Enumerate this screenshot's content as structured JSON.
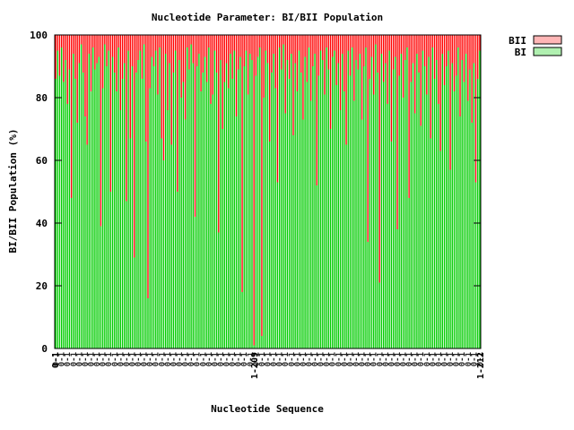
{
  "chart_data": {
    "type": "bar",
    "stacked": true,
    "title": "Nucleotide Parameter: BI/BII Population",
    "xlabel": "Nucleotide Sequence",
    "ylabel": "BI/BII Population (%)",
    "ylim": [
      0,
      100
    ],
    "yticks": [
      "0",
      "20",
      "40",
      "60",
      "80",
      "100"
    ],
    "grid": false,
    "legend_position": "top-right, outside plot",
    "x_axis_labels": {
      "first": "0-1",
      "middle": "1-209",
      "last": "1-212",
      "note": "x tick labels are densely overprinted and only partly legible"
    },
    "series": [
      {
        "name": "BII",
        "color": "#ff0000",
        "legend_swatch_color": "#ffb6b6",
        "values": [
          14,
          5,
          13,
          4,
          15,
          8,
          22,
          11,
          52,
          6,
          14,
          28,
          9,
          3,
          12,
          26,
          35,
          6,
          18,
          4,
          11,
          9,
          7,
          61,
          17,
          3,
          10,
          5,
          50,
          7,
          12,
          18,
          4,
          24,
          14,
          9,
          53,
          5,
          33,
          10,
          71,
          12,
          8,
          5,
          14,
          3,
          34,
          84,
          17,
          7,
          10,
          5,
          19,
          4,
          33,
          40,
          6,
          24,
          9,
          35,
          12,
          5,
          50,
          8,
          20,
          15,
          27,
          4,
          11,
          3,
          9,
          58,
          10,
          6,
          18,
          12,
          7,
          15,
          4,
          22,
          19,
          5,
          12,
          63,
          8,
          30,
          15,
          9,
          17,
          6,
          14,
          5,
          26,
          11,
          7,
          82,
          10,
          5,
          19,
          6,
          8,
          99,
          13,
          7,
          4,
          96,
          20,
          5,
          9,
          34,
          12,
          6,
          17,
          47,
          4,
          11,
          3,
          25,
          8,
          14,
          6,
          32,
          9,
          18,
          5,
          12,
          27,
          7,
          15,
          4,
          21,
          10,
          6,
          48,
          13,
          5,
          8,
          19,
          4,
          11,
          30,
          7,
          5,
          16,
          9,
          24,
          6,
          18,
          35,
          5,
          13,
          4,
          21,
          8,
          11,
          6,
          27,
          10,
          4,
          66,
          14,
          7,
          19,
          3,
          12,
          79,
          6,
          15,
          9,
          22,
          5,
          34,
          11,
          7,
          62,
          13,
          6,
          20,
          8,
          4,
          52,
          15,
          9,
          25,
          6,
          12,
          29,
          5,
          10,
          19,
          7,
          33,
          4,
          14,
          8,
          22,
          37,
          6,
          16,
          10,
          5,
          43,
          9,
          18,
          13,
          4,
          26,
          8,
          15,
          6,
          21,
          11,
          28,
          9,
          47,
          14,
          5
        ]
      },
      {
        "name": "BI",
        "color": "#00cc00",
        "legend_swatch_color": "#b0f0b0",
        "values": [
          86,
          95,
          87,
          96,
          85,
          92,
          78,
          89,
          48,
          94,
          86,
          72,
          91,
          97,
          88,
          74,
          65,
          94,
          82,
          96,
          89,
          91,
          93,
          39,
          83,
          97,
          90,
          95,
          50,
          93,
          88,
          82,
          96,
          76,
          86,
          91,
          47,
          95,
          67,
          90,
          29,
          88,
          92,
          95,
          86,
          97,
          66,
          16,
          83,
          93,
          90,
          95,
          81,
          96,
          67,
          60,
          94,
          76,
          91,
          65,
          88,
          95,
          50,
          92,
          80,
          85,
          73,
          96,
          89,
          97,
          91,
          42,
          90,
          94,
          82,
          88,
          93,
          85,
          96,
          78,
          81,
          95,
          88,
          37,
          92,
          70,
          85,
          91,
          83,
          94,
          86,
          95,
          74,
          89,
          93,
          18,
          90,
          95,
          81,
          94,
          92,
          1,
          87,
          93,
          96,
          4,
          80,
          95,
          91,
          66,
          88,
          94,
          83,
          53,
          96,
          89,
          97,
          75,
          92,
          86,
          94,
          68,
          91,
          82,
          95,
          88,
          73,
          93,
          85,
          96,
          79,
          90,
          94,
          52,
          87,
          95,
          92,
          81,
          96,
          89,
          70,
          93,
          95,
          84,
          91,
          76,
          94,
          82,
          65,
          95,
          87,
          96,
          79,
          92,
          89,
          94,
          73,
          90,
          96,
          34,
          86,
          93,
          81,
          97,
          88,
          21,
          94,
          85,
          91,
          78,
          95,
          66,
          89,
          93,
          38,
          87,
          94,
          80,
          92,
          96,
          48,
          85,
          91,
          75,
          94,
          88,
          71,
          95,
          90,
          81,
          93,
          67,
          96,
          86,
          92,
          78,
          63,
          94,
          84,
          90,
          95,
          57,
          91,
          82,
          87,
          96,
          74,
          92,
          85,
          94,
          79,
          89,
          72,
          91,
          53,
          86,
          95
        ]
      }
    ]
  }
}
